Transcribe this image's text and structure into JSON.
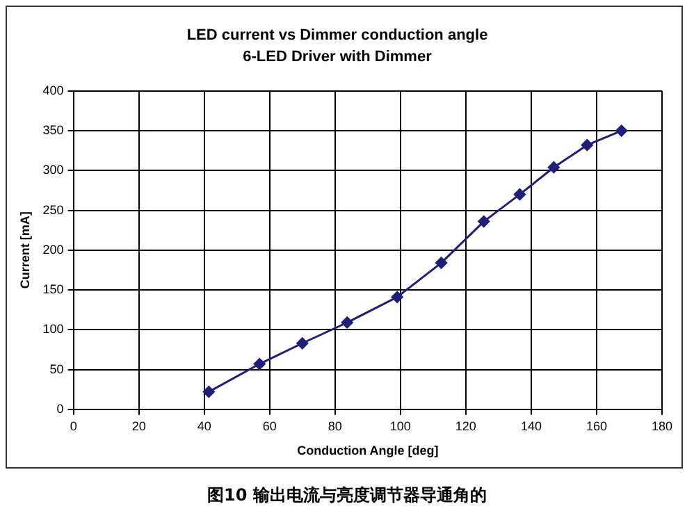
{
  "chart_data": {
    "type": "line",
    "title": "LED current vs Dimmer conduction angle",
    "subtitle": "6-LED Driver with Dimmer",
    "xlabel": "Conduction Angle [deg]",
    "ylabel": "Current [mA]",
    "x": [
      41.4,
      56.9,
      70,
      83.7,
      99,
      112.5,
      125.5,
      136.5,
      146.9,
      157.1,
      167.6
    ],
    "series": [
      {
        "color": "#1f1f7a",
        "values": [
          22,
          57,
          83,
          109,
          141,
          184,
          236,
          270,
          304,
          332,
          350
        ]
      }
    ],
    "xlim": [
      0,
      180
    ],
    "xticks": [
      0,
      20,
      40,
      60,
      80,
      100,
      120,
      140,
      160,
      180
    ],
    "ylim": [
      0,
      400
    ],
    "yticks": [
      0,
      50,
      100,
      150,
      200,
      250,
      300,
      350,
      400
    ],
    "grid": true,
    "legend": false,
    "marker": "diamond",
    "line_style": "solid",
    "annotations": [
      "图10 输出电流与亮度调节器导通角的"
    ]
  }
}
